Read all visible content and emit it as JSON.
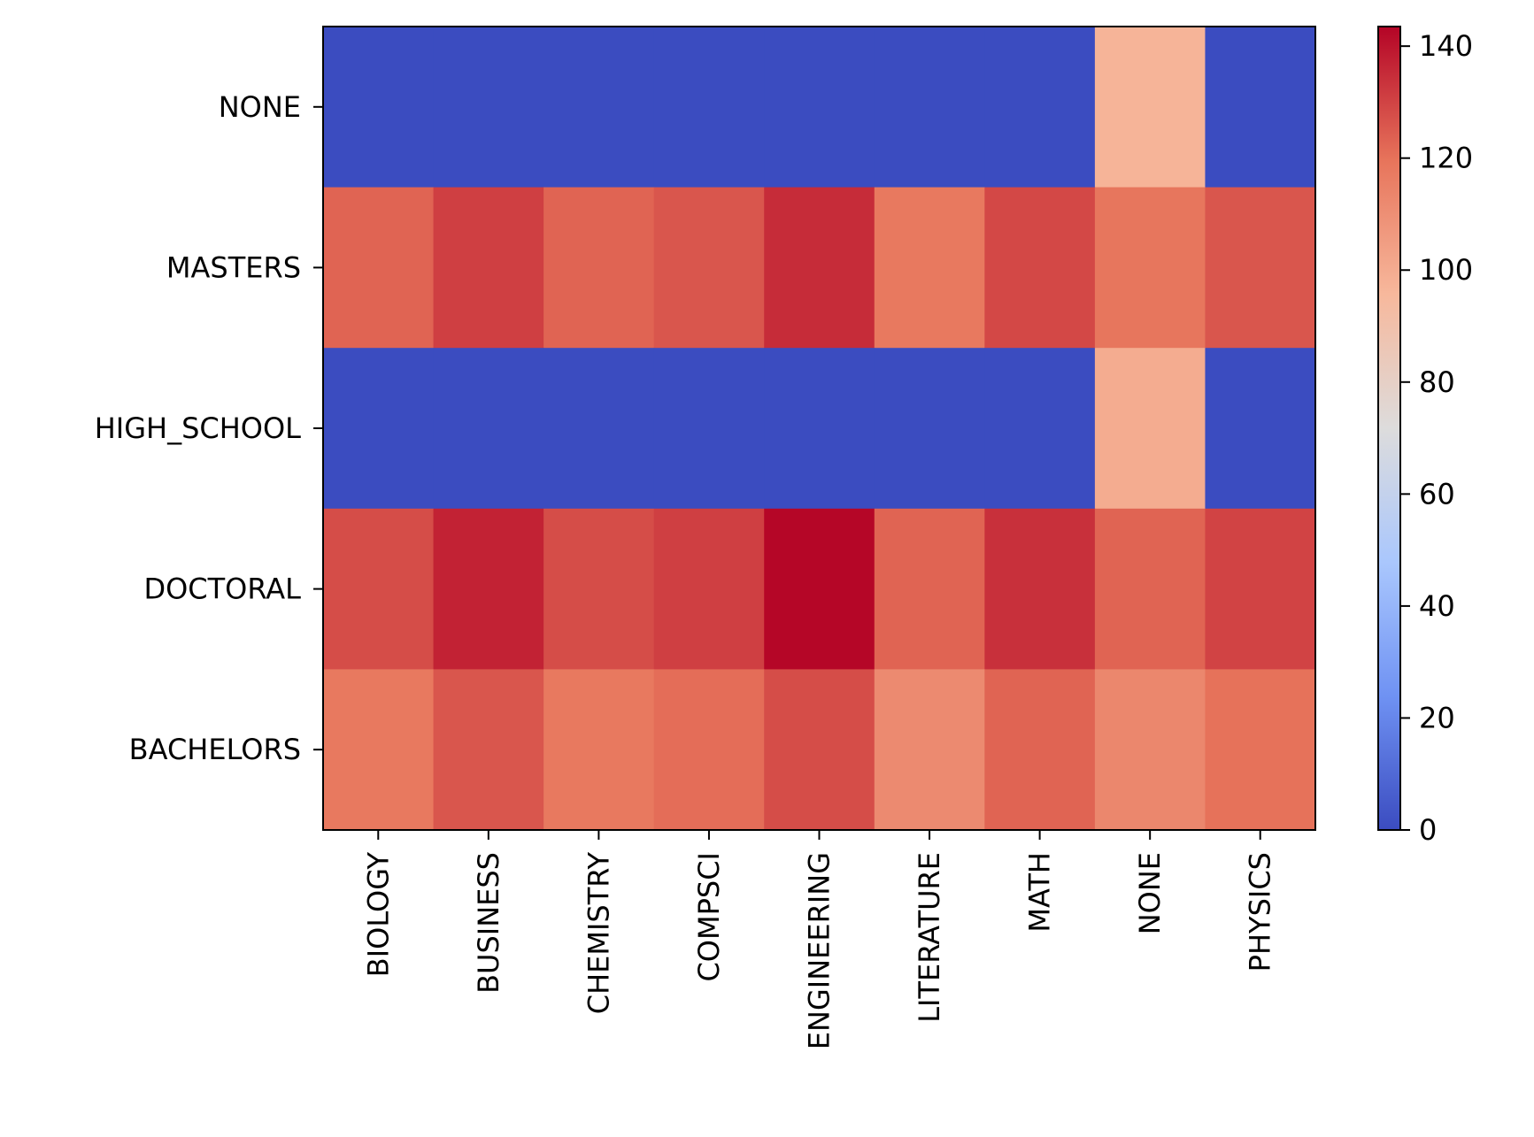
{
  "chart_data": {
    "type": "heatmap",
    "title": "",
    "xlabel": "",
    "ylabel": "",
    "x_categories": [
      "BIOLOGY",
      "BUSINESS",
      "CHEMISTRY",
      "COMPSCI",
      "ENGINEERING",
      "LITERATURE",
      "MATH",
      "NONE",
      "PHYSICS"
    ],
    "y_categories": [
      "NONE",
      "MASTERS",
      "HIGH_SCHOOL",
      "DOCTORAL",
      "BACHELORS"
    ],
    "values": [
      [
        0,
        0,
        0,
        0,
        0,
        0,
        0,
        97,
        0
      ],
      [
        123,
        131,
        123,
        126,
        135,
        118,
        129,
        119,
        126
      ],
      [
        0,
        0,
        0,
        0,
        0,
        0,
        0,
        100,
        0
      ],
      [
        128,
        137,
        128,
        131,
        143,
        123,
        134,
        123,
        130
      ],
      [
        118,
        126,
        118,
        121,
        128,
        112,
        123,
        113,
        120
      ]
    ],
    "colormap": "coolwarm",
    "colormap_stops": [
      "#3b4cc0",
      "#6f92f3",
      "#aac7fd",
      "#dddcdc",
      "#f7b89c",
      "#e7745b",
      "#b40426"
    ],
    "color_range": [
      0,
      143.5
    ],
    "colorbar": {
      "ticks": [
        0,
        20,
        40,
        60,
        80,
        100,
        120,
        140
      ],
      "tick_labels": [
        "0",
        "20",
        "40",
        "60",
        "80",
        "100",
        "120",
        "140"
      ]
    },
    "grid": false,
    "legend": "colorbar-right"
  }
}
